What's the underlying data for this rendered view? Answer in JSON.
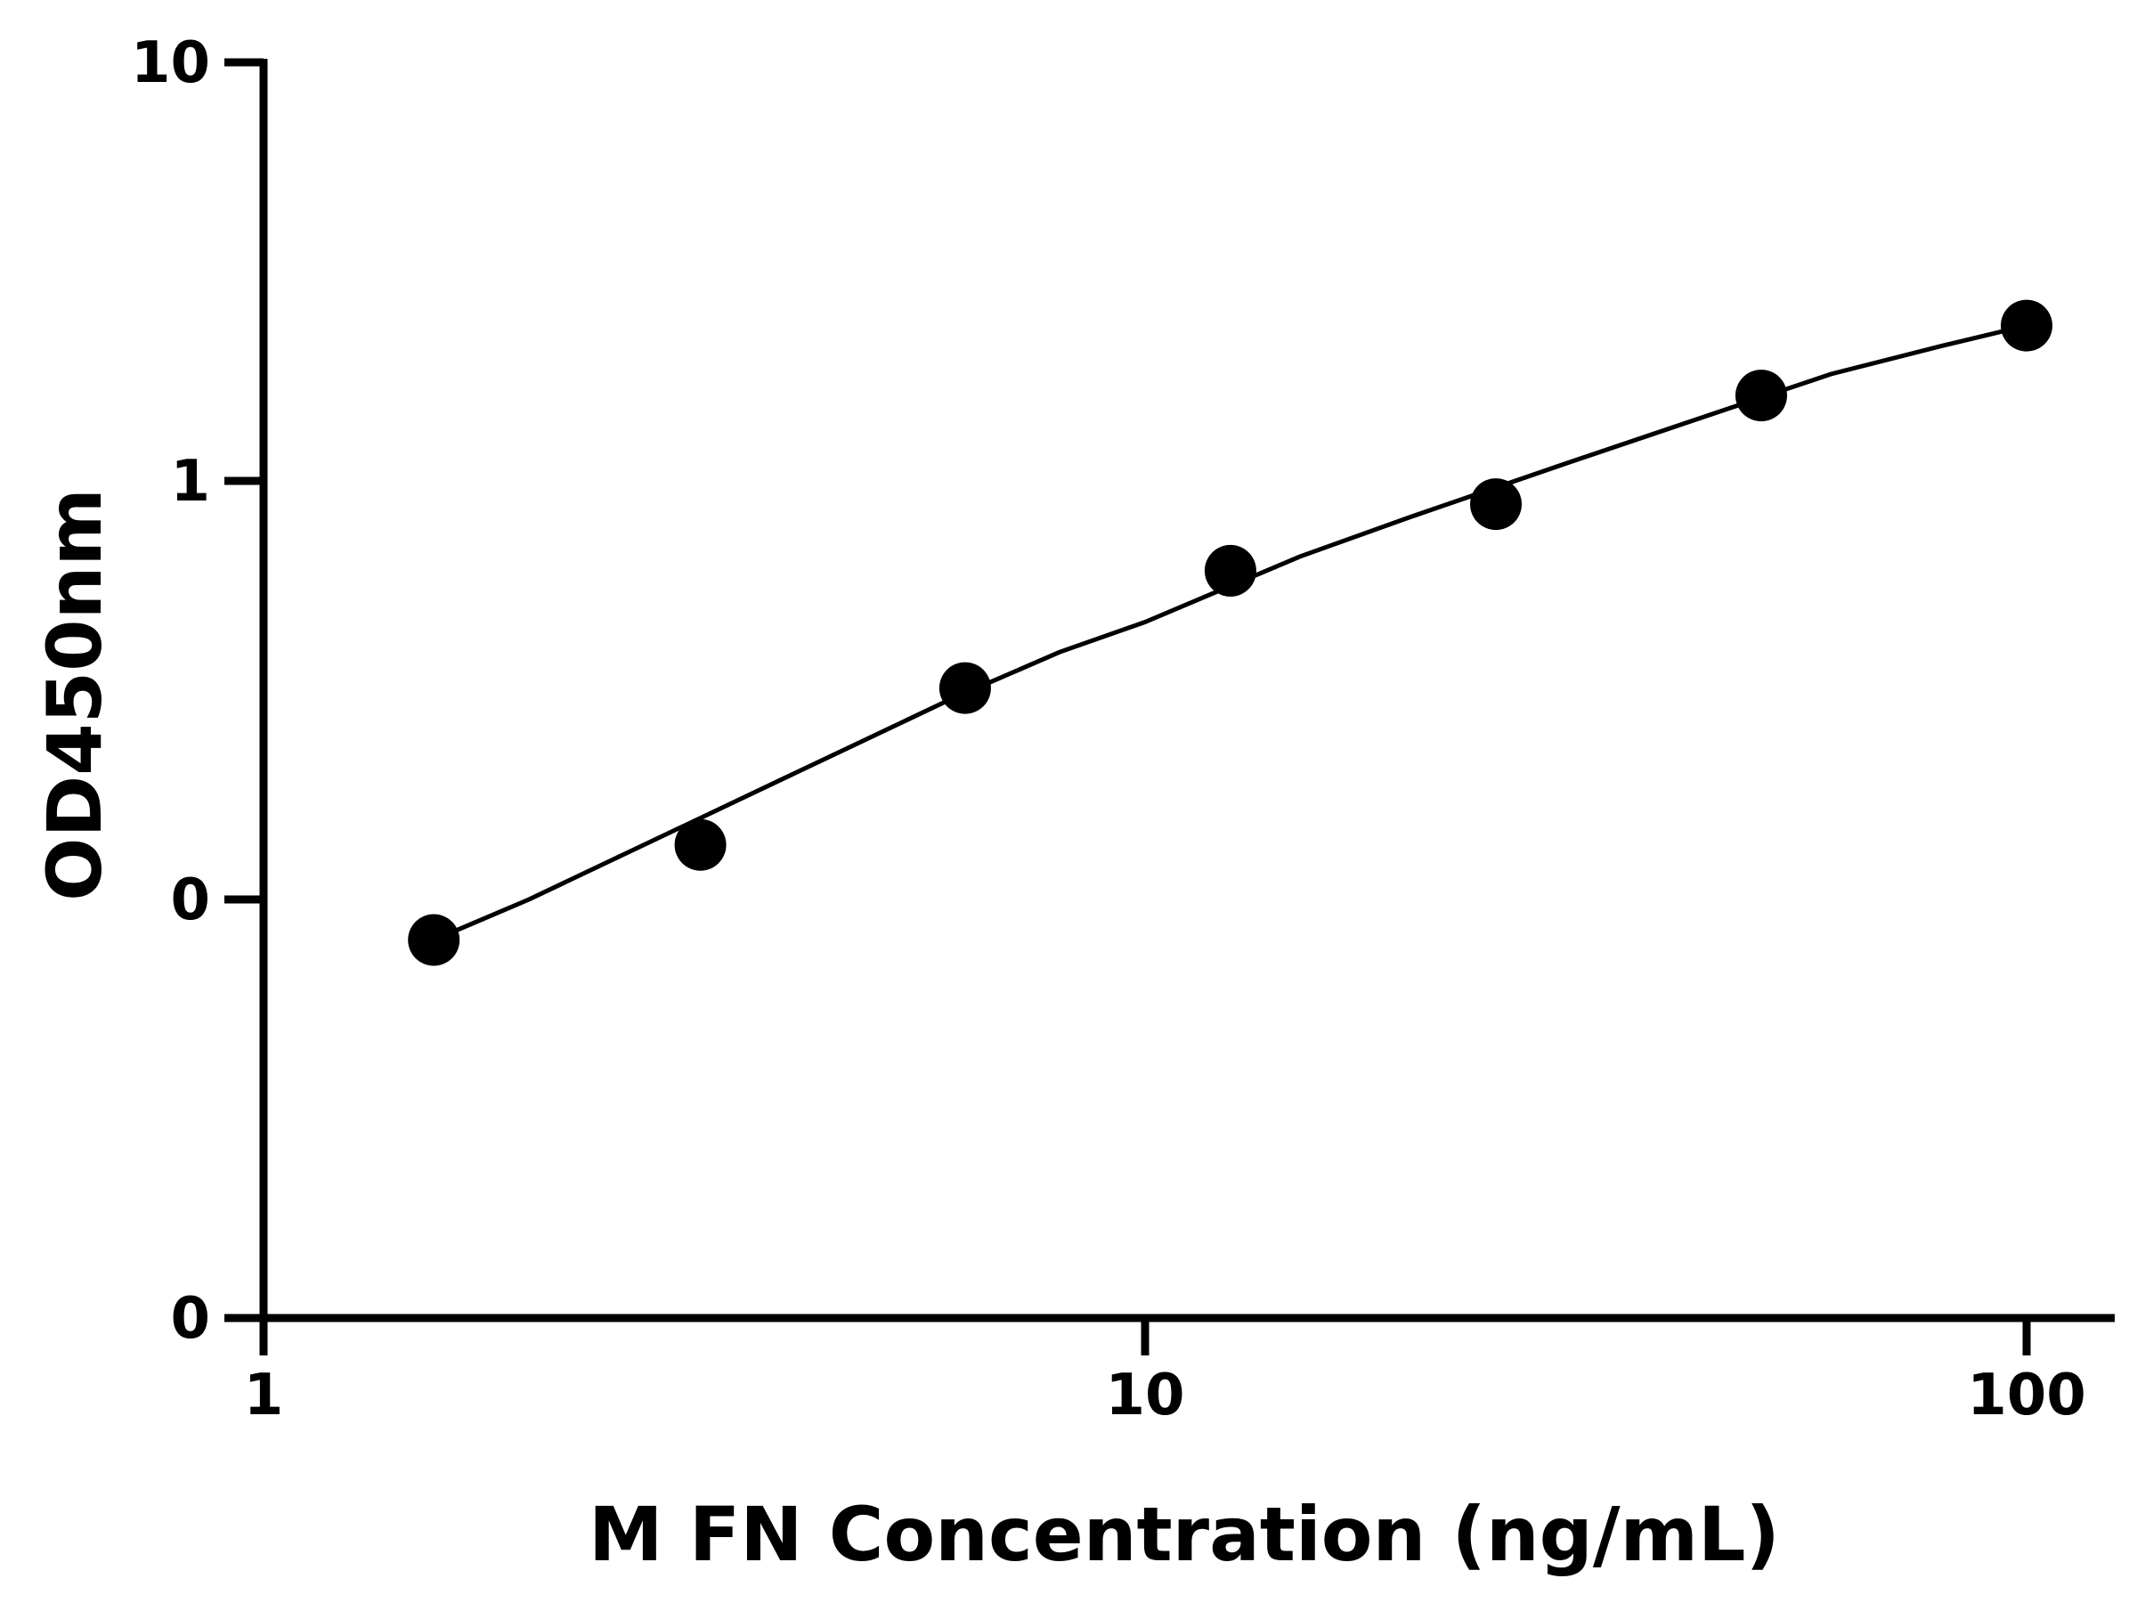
{
  "chart_data": {
    "type": "scatter",
    "title": "",
    "xlabel": "M FN Concentration (ng/mL)",
    "ylabel": "OD450nm",
    "xscale": "log",
    "yscale": "log",
    "xlim": [
      1,
      140
    ],
    "x_ticks": [
      {
        "value": 1,
        "label": "1"
      },
      {
        "value": 10,
        "label": "10"
      },
      {
        "value": 100,
        "label": "100"
      }
    ],
    "y_ticks": [
      {
        "value": 0.01,
        "label": "0"
      },
      {
        "value": 0.1,
        "label": "0"
      },
      {
        "value": 1,
        "label": "1"
      },
      {
        "value": 10,
        "label": "10"
      }
    ],
    "ylim": [
      0.01,
      10
    ],
    "grid": false,
    "series": [
      {
        "marker": "circle",
        "color": "#000000",
        "x": [
          1.56,
          3.13,
          6.25,
          12.5,
          25,
          50,
          100
        ],
        "y": [
          0.08,
          0.135,
          0.32,
          0.61,
          0.88,
          1.6,
          2.35
        ]
      }
    ],
    "fit_curve": {
      "type": "line",
      "color": "#000000",
      "x": [
        1.56,
        2,
        3,
        4,
        6,
        8,
        10,
        15,
        20,
        30,
        40,
        60,
        80,
        100
      ],
      "y": [
        0.08,
        0.1,
        0.15,
        0.2,
        0.3,
        0.39,
        0.46,
        0.66,
        0.82,
        1.1,
        1.35,
        1.8,
        2.1,
        2.35
      ]
    }
  }
}
